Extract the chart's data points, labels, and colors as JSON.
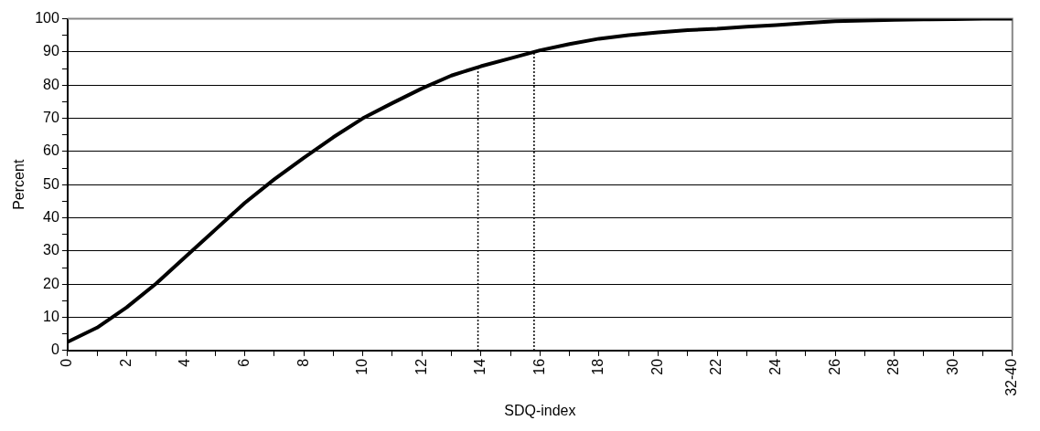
{
  "chart_data": {
    "type": "line",
    "xlabel": "SDQ-index",
    "ylabel": "Percent",
    "x": [
      0,
      1,
      2,
      3,
      4,
      5,
      6,
      7,
      8,
      9,
      10,
      11,
      12,
      13,
      14,
      15,
      16,
      17,
      18,
      19,
      20,
      21,
      22,
      23,
      24,
      25,
      26,
      27,
      28,
      29,
      30,
      31,
      32
    ],
    "series": [
      {
        "color": "#000000",
        "values": [
          2.6,
          6.9,
          13.0,
          20.2,
          28.3,
          36.4,
          44.5,
          51.6,
          58.1,
          64.3,
          70.0,
          74.6,
          79.0,
          82.9,
          85.7,
          88.1,
          90.5,
          92.4,
          94.0,
          95.1,
          95.9,
          96.6,
          97.0,
          97.6,
          98.1,
          98.7,
          99.3,
          99.5,
          99.7,
          99.8,
          99.9,
          100,
          100
        ]
      }
    ],
    "xlim": [
      0,
      32
    ],
    "xticks": [
      0,
      {
        "value": 1,
        "label": null
      },
      2,
      {
        "value": 3,
        "label": null
      },
      4,
      {
        "value": 5,
        "label": null
      },
      6,
      {
        "value": 7,
        "label": null
      },
      8,
      {
        "value": 9,
        "label": null
      },
      10,
      {
        "value": 11,
        "label": null
      },
      12,
      {
        "value": 13,
        "label": null
      },
      14,
      {
        "value": 15,
        "label": null
      },
      16,
      {
        "value": 17,
        "label": null
      },
      18,
      {
        "value": 19,
        "label": null
      },
      20,
      {
        "value": 21,
        "label": null
      },
      22,
      {
        "value": 23,
        "label": null
      },
      24,
      {
        "value": 25,
        "label": null
      },
      26,
      {
        "value": 27,
        "label": null
      },
      28,
      {
        "value": 29,
        "label": null
      },
      30,
      {
        "value": 31,
        "label": null
      },
      {
        "value": 32,
        "label": "32-40"
      }
    ],
    "ylim": [
      0,
      100
    ],
    "yticks": [
      0,
      {
        "value": 5,
        "label": null
      },
      10,
      {
        "value": 15,
        "label": null
      },
      20,
      {
        "value": 25,
        "label": null
      },
      30,
      {
        "value": 35,
        "label": null
      },
      40,
      {
        "value": 45,
        "label": null
      },
      50,
      {
        "value": 55,
        "label": null
      },
      60,
      {
        "value": 65,
        "label": null
      },
      70,
      {
        "value": 75,
        "label": null
      },
      80,
      {
        "value": 85,
        "label": null
      },
      90,
      {
        "value": 95,
        "label": null
      },
      100
    ],
    "ref_lines": [
      {
        "axis": "x",
        "value": 13.9,
        "label": null,
        "color": "#000000",
        "line_style": "dotted"
      },
      {
        "axis": "x",
        "value": 15.8,
        "label": null,
        "color": "#000000",
        "line_style": "dotted"
      }
    ],
    "grid": "y",
    "legend": false,
    "marker": "none",
    "line_style": "solid"
  }
}
